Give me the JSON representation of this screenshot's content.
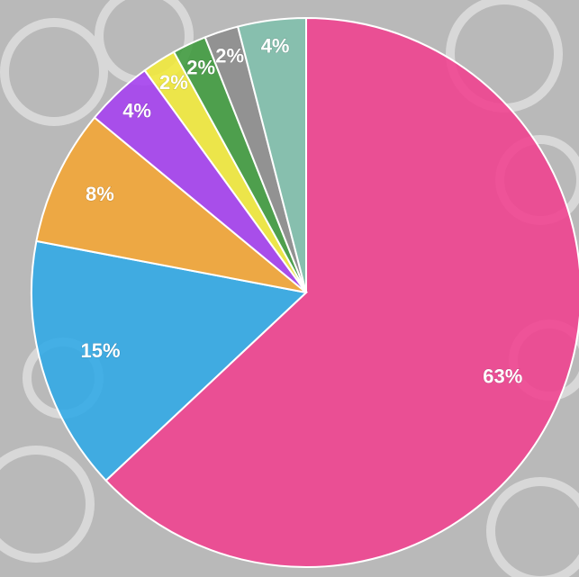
{
  "chart_data": {
    "type": "pie",
    "categories": [
      null,
      null,
      null,
      null,
      null,
      null,
      null,
      null
    ],
    "values": [
      63,
      15,
      8,
      4,
      2,
      2,
      2,
      4
    ],
    "value_labels": [
      "63%",
      "15%",
      "8%",
      "4%",
      "2%",
      "2%",
      "2%",
      "4%"
    ],
    "colors": [
      "#f0408e",
      "#2fa8e6",
      "#f4a533",
      "#a53ff0",
      "#f3ea3a",
      "#3f9b3d",
      "#8c8c8c",
      "#7fbfac"
    ]
  }
}
